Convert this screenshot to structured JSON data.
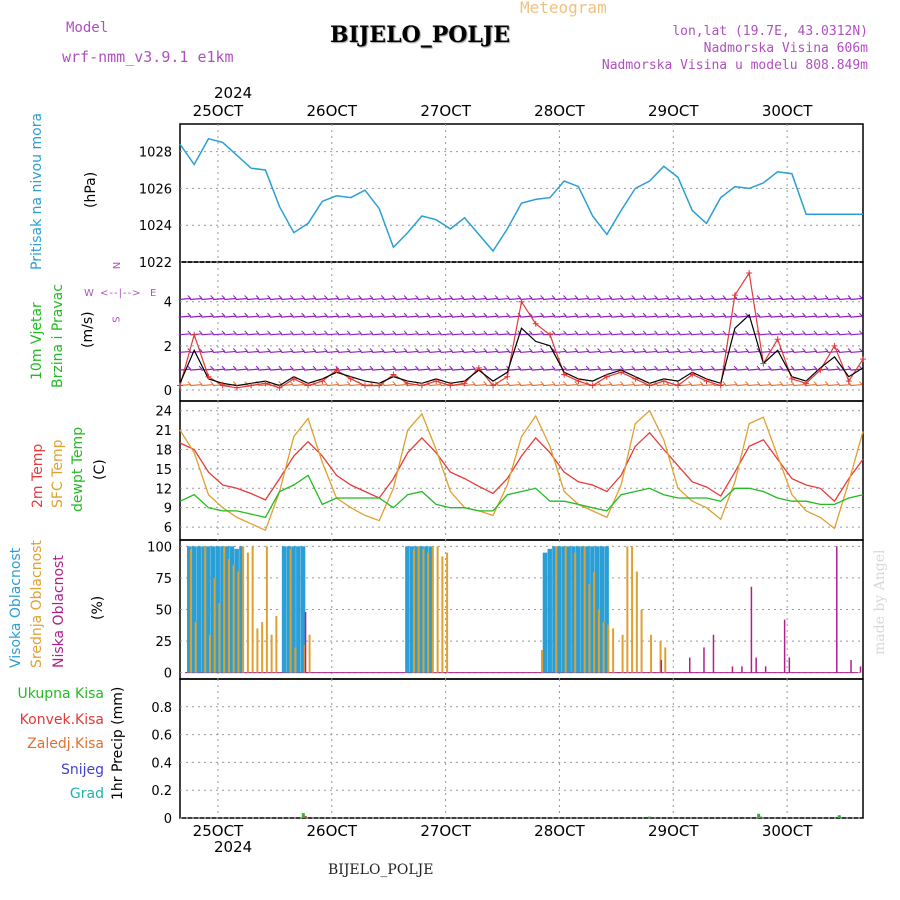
{
  "header": {
    "meteogram_label": "Meteogram",
    "model_label": "Model",
    "model_name": "wrf-nmm_v3.9.1  e1km",
    "station": "BIJELO_POLJE",
    "lonlat": "lon,lat (19.7E, 43.0312N)",
    "elevation": "Nadmorska Visina 606m",
    "model_elevation": "Nadmorska Visina u modelu 808.849m",
    "year_top": "2024",
    "year_bottom": "2024",
    "footer_station": "BIJELO_POLJE",
    "credit": "made by Angel"
  },
  "colors": {
    "pressure": "#2a9fd6",
    "wind_speed": "#000000",
    "gust": "#e03a3a",
    "temp2m": "#e83a3a",
    "sfc_temp": "#e0a030",
    "dewpoint": "#22bb22",
    "high_cloud": "#2a9fd6",
    "mid_cloud": "#e0a030",
    "low_cloud": "#b0208a",
    "precip_total": "#22bb22",
    "precip_conv": "#e03a3a",
    "wind_barb_main": "#9020c0",
    "model_text": "#b050c0"
  },
  "panel_labels": {
    "pressure": [
      "Pritisak na nivou mora",
      "(hPa)"
    ],
    "wind": [
      "10m Vjetar",
      "Brzina i Pravac",
      "(m/s)"
    ],
    "wind_compass": [
      "N",
      "S",
      "W",
      "E"
    ],
    "temp": [
      "2m Temp",
      "SFC Temp",
      "dewpt Temp",
      "(C)"
    ],
    "cloud": [
      "Visoka Oblacnost",
      "Srednja Oblacnost",
      "Niska Oblacnost",
      "(%)"
    ],
    "precip_legend": [
      "Ukupna Kisa",
      "Konvek.Kisa",
      "Zaledj.Kisa",
      "Snijeg",
      "Grad"
    ],
    "precip_axis": "1hr Precip (mm)"
  },
  "chart_data": [
    {
      "type": "line",
      "name": "pressure",
      "x_ticks": [
        "25OCT",
        "26OCT",
        "27OCT",
        "28OCT",
        "29OCT",
        "30OCT"
      ],
      "ylim": [
        1022,
        1029.5
      ],
      "y_ticks": [
        1022,
        1024,
        1026,
        1028
      ],
      "t_range": [
        0,
        144
      ],
      "grid": true,
      "t": [
        0,
        3,
        6,
        9,
        12,
        15,
        18,
        21,
        24,
        27,
        30,
        33,
        36,
        39,
        42,
        45,
        48,
        51,
        54,
        57,
        60,
        63,
        66,
        69,
        72,
        75,
        78,
        81,
        84,
        87,
        90,
        93,
        96,
        99,
        102,
        105,
        108,
        111,
        114,
        117,
        120,
        123,
        126,
        129,
        132,
        135,
        138,
        141,
        144
      ],
      "values": [
        1028.4,
        1027.3,
        1028.7,
        1028.5,
        1027.8,
        1027.1,
        1027.0,
        1025.0,
        1023.6,
        1024.1,
        1025.3,
        1025.6,
        1025.5,
        1025.9,
        1024.9,
        1022.8,
        1023.6,
        1024.5,
        1024.3,
        1023.8,
        1024.4,
        1023.5,
        1022.6,
        1023.8,
        1025.2,
        1025.4,
        1025.5,
        1026.4,
        1026.1,
        1024.5,
        1023.5,
        1024.8,
        1026.0,
        1026.4,
        1027.2,
        1026.6,
        1024.8,
        1024.1,
        1025.5,
        1026.1,
        1026.0,
        1026.3,
        1026.9,
        1026.8,
        1024.6,
        1024.6,
        1024.6,
        1024.6,
        1024.6
      ]
    },
    {
      "type": "line",
      "name": "wind",
      "x_ticks": [
        "25OCT",
        "26OCT",
        "27OCT",
        "28OCT",
        "29OCT",
        "30OCT"
      ],
      "ylim": [
        -0.5,
        5.8
      ],
      "y_ticks": [
        0,
        2,
        4
      ],
      "t_range": [
        0,
        144
      ],
      "grid": true,
      "t": [
        0,
        3,
        6,
        9,
        12,
        15,
        18,
        21,
        24,
        27,
        30,
        33,
        36,
        39,
        42,
        45,
        48,
        51,
        54,
        57,
        60,
        63,
        66,
        69,
        72,
        75,
        78,
        81,
        84,
        87,
        90,
        93,
        96,
        99,
        102,
        105,
        108,
        111,
        114,
        117,
        120,
        123,
        126,
        129,
        132,
        135,
        138,
        141,
        144
      ],
      "speed": [
        0.3,
        1.8,
        0.5,
        0.3,
        0.2,
        0.3,
        0.4,
        0.2,
        0.6,
        0.3,
        0.5,
        0.8,
        0.6,
        0.4,
        0.3,
        0.6,
        0.4,
        0.3,
        0.5,
        0.3,
        0.4,
        0.9,
        0.4,
        0.8,
        2.8,
        2.2,
        2.0,
        0.8,
        0.5,
        0.4,
        0.7,
        0.9,
        0.6,
        0.3,
        0.5,
        0.4,
        0.8,
        0.5,
        0.3,
        2.8,
        3.4,
        1.2,
        1.8,
        0.6,
        0.4,
        1.0,
        1.5,
        0.6,
        1.0
      ],
      "gust": [
        0.2,
        2.5,
        0.6,
        0.2,
        0.1,
        0.2,
        0.3,
        0.1,
        0.5,
        0.2,
        0.4,
        0.9,
        0.5,
        0.2,
        0.2,
        0.7,
        0.3,
        0.2,
        0.4,
        0.2,
        0.3,
        1.0,
        0.2,
        0.6,
        4.0,
        3.0,
        2.5,
        0.7,
        0.4,
        0.2,
        0.6,
        0.8,
        0.5,
        0.2,
        0.4,
        0.2,
        0.7,
        0.4,
        0.2,
        4.3,
        5.3,
        1.2,
        2.3,
        0.5,
        0.3,
        0.9,
        2.0,
        0.4,
        1.4
      ]
    },
    {
      "type": "line",
      "name": "temperature",
      "x_ticks": [
        "25OCT",
        "26OCT",
        "27OCT",
        "28OCT",
        "29OCT",
        "30OCT"
      ],
      "ylim": [
        4,
        25.5
      ],
      "y_ticks": [
        6,
        9,
        12,
        15,
        18,
        21,
        24
      ],
      "t_range": [
        0,
        144
      ],
      "grid": true,
      "t": [
        0,
        3,
        6,
        9,
        12,
        15,
        18,
        21,
        24,
        27,
        30,
        33,
        36,
        39,
        42,
        45,
        48,
        51,
        54,
        57,
        60,
        63,
        66,
        69,
        72,
        75,
        78,
        81,
        84,
        87,
        90,
        93,
        96,
        99,
        102,
        105,
        108,
        111,
        114,
        117,
        120,
        123,
        126,
        129,
        132,
        135,
        138,
        141,
        144
      ],
      "series": [
        {
          "name": "2m Temp",
          "values": [
            19.0,
            18.0,
            14.5,
            12.5,
            12.0,
            11.2,
            10.2,
            13.5,
            17.0,
            19.2,
            17.0,
            14.0,
            12.5,
            11.5,
            10.5,
            13.5,
            17.5,
            19.8,
            17.5,
            14.5,
            13.5,
            12.3,
            11.2,
            13.5,
            17.0,
            19.8,
            17.5,
            14.5,
            13.0,
            12.5,
            11.5,
            14.0,
            18.5,
            20.6,
            18.0,
            15.5,
            13.0,
            12.2,
            10.8,
            14.5,
            18.5,
            19.5,
            16.5,
            13.5,
            12.5,
            12.0,
            10.0,
            13.5,
            16.5
          ]
        },
        {
          "name": "SFC Temp",
          "values": [
            21.0,
            17.5,
            11.0,
            9.0,
            7.5,
            6.5,
            5.5,
            11.5,
            20.0,
            22.8,
            16.0,
            10.5,
            9.0,
            7.8,
            7.0,
            12.0,
            21.0,
            23.5,
            18.0,
            11.5,
            9.0,
            8.5,
            7.8,
            12.5,
            20.0,
            23.2,
            18.5,
            11.5,
            9.5,
            8.5,
            7.5,
            12.5,
            22.0,
            24.0,
            19.5,
            12.0,
            10.0,
            9.0,
            7.2,
            13.0,
            22.0,
            23.0,
            17.0,
            11.0,
            8.5,
            7.5,
            5.8,
            13.0,
            20.8
          ]
        },
        {
          "name": "dewpt Temp",
          "values": [
            10.0,
            11.0,
            9.0,
            8.5,
            8.5,
            8.0,
            7.5,
            11.5,
            12.5,
            14.0,
            9.5,
            10.5,
            10.5,
            10.5,
            10.5,
            9.0,
            11.0,
            11.5,
            9.5,
            9.0,
            9.0,
            8.5,
            8.5,
            11.0,
            11.5,
            12.0,
            10.0,
            10.0,
            9.5,
            9.0,
            8.5,
            11.0,
            11.5,
            12.0,
            11.0,
            10.5,
            10.5,
            10.5,
            10.0,
            12.0,
            12.0,
            11.5,
            10.5,
            10.0,
            10.0,
            9.5,
            9.5,
            10.5,
            11.0
          ]
        }
      ]
    },
    {
      "type": "bar",
      "name": "cloud",
      "x_ticks": [
        "25OCT",
        "26OCT",
        "27OCT",
        "28OCT",
        "29OCT",
        "30OCT"
      ],
      "ylim": [
        -5,
        105
      ],
      "y_ticks": [
        0,
        25,
        50,
        75,
        100
      ],
      "t_range": [
        0,
        144
      ],
      "grid": true,
      "high": [
        [
          2,
          100
        ],
        [
          3,
          100
        ],
        [
          4,
          100
        ],
        [
          5,
          100
        ],
        [
          6,
          100
        ],
        [
          7,
          100
        ],
        [
          8,
          100
        ],
        [
          9,
          100
        ],
        [
          10,
          100
        ],
        [
          11,
          100
        ],
        [
          12,
          98
        ],
        [
          13,
          100
        ],
        [
          22,
          100
        ],
        [
          23,
          100
        ],
        [
          24,
          100
        ],
        [
          25,
          100
        ],
        [
          26,
          100
        ],
        [
          48,
          100
        ],
        [
          49,
          100
        ],
        [
          50,
          100
        ],
        [
          51,
          100
        ],
        [
          52,
          100
        ],
        [
          53,
          100
        ],
        [
          77,
          95
        ],
        [
          78,
          98
        ],
        [
          79,
          100
        ],
        [
          80,
          100
        ],
        [
          81,
          100
        ],
        [
          82,
          100
        ],
        [
          83,
          100
        ],
        [
          84,
          100
        ],
        [
          85,
          100
        ],
        [
          86,
          100
        ],
        [
          87,
          100
        ],
        [
          88,
          100
        ],
        [
          89,
          100
        ],
        [
          90,
          100
        ]
      ],
      "mid": [
        [
          2,
          98
        ],
        [
          3,
          40
        ],
        [
          5,
          100
        ],
        [
          6,
          30
        ],
        [
          7,
          75
        ],
        [
          8,
          55
        ],
        [
          9,
          100
        ],
        [
          10,
          90
        ],
        [
          11,
          85
        ],
        [
          12,
          80
        ],
        [
          13,
          100
        ],
        [
          14,
          95
        ],
        [
          15,
          100
        ],
        [
          16,
          35
        ],
        [
          17,
          40
        ],
        [
          18,
          100
        ],
        [
          19,
          30
        ],
        [
          20,
          45
        ],
        [
          23,
          98
        ],
        [
          24,
          20
        ],
        [
          26,
          22
        ],
        [
          27,
          30
        ],
        [
          49,
          98
        ],
        [
          50,
          100
        ],
        [
          51,
          98
        ],
        [
          52,
          95
        ],
        [
          53,
          100
        ],
        [
          54,
          100
        ],
        [
          55,
          92
        ],
        [
          56,
          95
        ],
        [
          76,
          18
        ],
        [
          79,
          100
        ],
        [
          81,
          100
        ],
        [
          83,
          95
        ],
        [
          85,
          100
        ],
        [
          86,
          70
        ],
        [
          87,
          80
        ],
        [
          88,
          50
        ],
        [
          89,
          40
        ],
        [
          90,
          38
        ],
        [
          91,
          35
        ],
        [
          93,
          30
        ],
        [
          94,
          100
        ],
        [
          95,
          100
        ],
        [
          96,
          80
        ],
        [
          97,
          50
        ],
        [
          99,
          30
        ],
        [
          101,
          25
        ],
        [
          102,
          20
        ]
      ],
      "low": [
        [
          26,
          48
        ],
        [
          101,
          10
        ],
        [
          107,
          12
        ],
        [
          110,
          20
        ],
        [
          112,
          30
        ],
        [
          116,
          5
        ],
        [
          118,
          5
        ],
        [
          120,
          68
        ],
        [
          121,
          12
        ],
        [
          123,
          5
        ],
        [
          127,
          42
        ],
        [
          128,
          12
        ],
        [
          138,
          100
        ],
        [
          141,
          10
        ],
        [
          143,
          5
        ]
      ]
    },
    {
      "type": "bar",
      "name": "precipitation",
      "x_ticks": [
        "25OCT",
        "26OCT",
        "27OCT",
        "28OCT",
        "29OCT",
        "30OCT"
      ],
      "ylim": [
        0,
        1.0
      ],
      "y_ticks": [
        0,
        0.2,
        0.4,
        0.6,
        0.8
      ],
      "t_range": [
        0,
        144
      ],
      "grid": true,
      "total": [
        [
          26,
          0.035
        ],
        [
          99,
          0.01
        ],
        [
          122,
          0.03
        ],
        [
          139,
          0.02
        ]
      ],
      "convective": [
        [
          26,
          0.015
        ],
        [
          122,
          0.01
        ]
      ]
    }
  ]
}
